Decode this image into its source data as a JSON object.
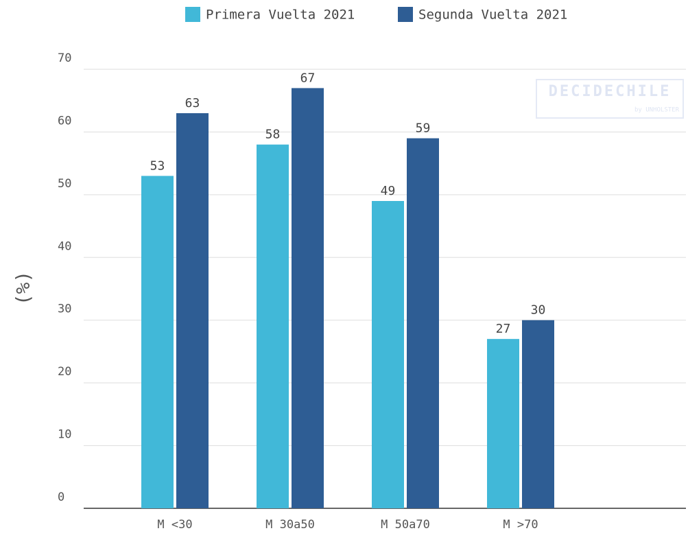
{
  "chart_data": {
    "type": "bar",
    "categories": [
      "M <30",
      "M 30a50",
      "M 50a70",
      "M >70"
    ],
    "series": [
      {
        "name": "Primera Vuelta 2021",
        "color": "#41b8d8",
        "values": [
          53,
          58,
          49,
          27
        ]
      },
      {
        "name": "Segunda Vuelta 2021",
        "color": "#2e5d94",
        "values": [
          63,
          67,
          59,
          30
        ]
      }
    ],
    "y_label": "(%)",
    "ylim": [
      0,
      70
    ],
    "yticks": [
      0,
      10,
      20,
      30,
      40,
      50,
      60,
      70
    ],
    "grid": true,
    "watermark": {
      "title": "DECIDECHILE",
      "subtitle": "by UNHOLSTER"
    }
  }
}
